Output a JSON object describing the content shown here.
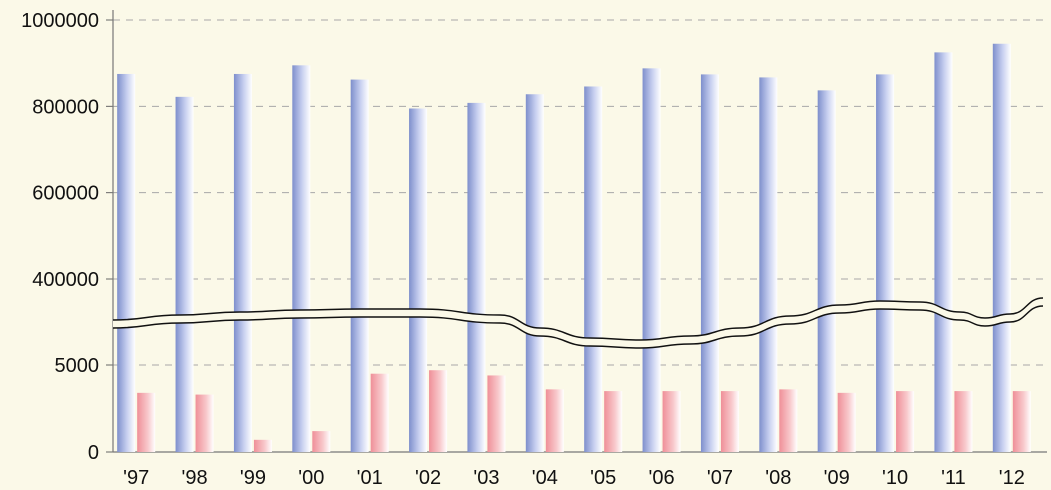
{
  "chart_data": {
    "type": "bar",
    "axis_break": true,
    "categories": [
      "'97",
      "'98",
      "'99",
      "'00",
      "'01",
      "'02",
      "'03",
      "'04",
      "'05",
      "'06",
      "'07",
      "'08",
      "'09",
      "'10",
      "'11",
      "'12"
    ],
    "yticks": [
      "0",
      "5000",
      "400000",
      "600000",
      "800000",
      "1000000"
    ],
    "series": [
      {
        "values": [
          875000,
          822000,
          875000,
          895000,
          862000,
          795000,
          808000,
          828000,
          846000,
          888000,
          874000,
          867000,
          837000,
          874000,
          925000,
          945000
        ],
        "color": "#8f9fd6"
      },
      {
        "values": [
          3400,
          3300,
          700,
          1200,
          4500,
          4700,
          4400,
          3600,
          3500,
          3500,
          3500,
          3600,
          3400,
          3500,
          3500,
          3500
        ],
        "color": "#f3a0a6"
      }
    ],
    "grid": true,
    "background": "#fbf9e8"
  }
}
